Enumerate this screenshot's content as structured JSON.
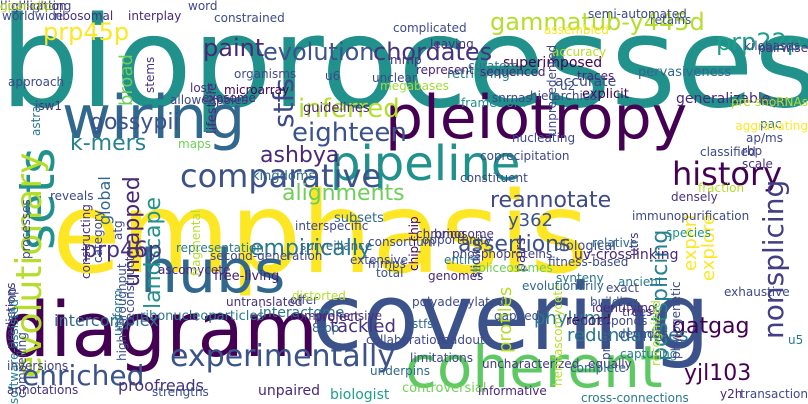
{
  "words": [
    {
      "text": "biopr​ocesses",
      "color": "#21918c"
    },
    {
      "text": "emphasis",
      "color": "#fde725"
    },
    {
      "text": "covering",
      "color": "#3b528b"
    },
    {
      "text": "diagram",
      "color": "#440154"
    },
    {
      "text": "pleiotropy",
      "color": "#440154"
    },
    {
      "text": "coherent",
      "color": "#5ec962"
    },
    {
      "text": "wiring",
      "color": "#31688e"
    },
    {
      "text": "pipeline",
      "color": "#21918c"
    },
    {
      "text": "hubs",
      "color": "#31688e"
    },
    {
      "text": "sets",
      "color": "#21918c"
    },
    {
      "text": "evolutionary",
      "color": "#b5de2b"
    },
    {
      "text": "experimentally",
      "color": "#3b528b"
    },
    {
      "text": "enriched",
      "color": "#3b528b"
    },
    {
      "text": "history",
      "color": "#440154"
    },
    {
      "text": "eighteen",
      "color": "#3b528b"
    },
    {
      "text": "comparative",
      "color": "#3b528b"
    },
    {
      "text": "inferred",
      "color": "#b5de2b"
    },
    {
      "text": "evolution",
      "color": "#3b528b"
    },
    {
      "text": "prp22p",
      "color": "#1f9e89"
    },
    {
      "text": "prp45p",
      "color": "#fde725"
    },
    {
      "text": "gammatub-y445d",
      "color": "#b5de2b"
    },
    {
      "text": "chordates",
      "color": "#46327e"
    },
    {
      "text": "paint",
      "color": "#482878"
    },
    {
      "text": "gossypii",
      "color": "#3b528b"
    },
    {
      "text": "k-mers",
      "color": "#26828e"
    },
    {
      "text": "ashbya",
      "color": "#482878"
    },
    {
      "text": "reannotate",
      "color": "#3e4989"
    },
    {
      "text": "nonsplicing",
      "color": "#433e85"
    },
    {
      "text": "assertions",
      "color": "#3b528b"
    },
    {
      "text": "postsplicing",
      "color": "#26828e"
    },
    {
      "text": "alignments",
      "color": "#6ece58"
    },
    {
      "text": "empirically",
      "color": "#2a788e"
    },
    {
      "text": "landscape",
      "color": "#21918c"
    },
    {
      "text": "ungapped",
      "color": "#482878"
    },
    {
      "text": "prp46p",
      "color": "#46327e"
    },
    {
      "text": "y362",
      "color": "#3b528b"
    },
    {
      "text": "phylum",
      "color": "#2a788e"
    },
    {
      "text": "explore",
      "color": "#fde725"
    },
    {
      "text": "expert",
      "color": "#fde725"
    },
    {
      "text": "profiles",
      "color": "#b5de2b"
    },
    {
      "text": "global",
      "color": "#31688e"
    },
    {
      "text": "stfs",
      "color": "#3e4989"
    },
    {
      "text": "broad",
      "color": "#6ece58"
    },
    {
      "text": "tackled",
      "color": "#46327e"
    },
    {
      "text": "yjl103",
      "color": "#440154"
    },
    {
      "text": "gatgag",
      "color": "#440154"
    },
    {
      "text": "redundancies",
      "color": "#2a788e"
    },
    {
      "text": "record",
      "color": "#440154"
    },
    {
      "text": "proofreads",
      "color": "#46327e"
    },
    {
      "text": "biologist",
      "color": "#1f9e89"
    },
    {
      "text": "unpaired",
      "color": "#482878"
    },
    {
      "text": "intercomplex",
      "color": "#31688e"
    },
    {
      "text": "ribonucleoparticles",
      "color": "#2a788e"
    },
    {
      "text": "free-living",
      "color": "#481f70"
    },
    {
      "text": "ascomycete",
      "color": "#482878"
    },
    {
      "text": "pairs",
      "color": "#46327e"
    },
    {
      "text": "word",
      "color": "#3e4989"
    },
    {
      "text": "lifestyle",
      "color": "#482878"
    },
    {
      "text": "superimposed",
      "color": "#440154"
    },
    {
      "text": "guidelines",
      "color": "#482878"
    },
    {
      "text": "framework",
      "color": "#21918c"
    },
    {
      "text": "retrieving",
      "color": "#26828e"
    },
    {
      "text": "accurate",
      "color": "#3e4989"
    },
    {
      "text": "explicit",
      "color": "#440154"
    },
    {
      "text": "generalizable",
      "color": "#482878"
    },
    {
      "text": "uv-crosslinking",
      "color": "#482878"
    },
    {
      "text": "biological",
      "color": "#3e4989"
    },
    {
      "text": "kingdoms",
      "color": "#31688e"
    },
    {
      "text": "subsets",
      "color": "#31688e"
    },
    {
      "text": "consortium",
      "color": "#3e4989"
    },
    {
      "text": "total",
      "color": "#3b528b"
    },
    {
      "text": "gapped",
      "color": "#3b528b"
    },
    {
      "text": "underpins",
      "color": "#31688e"
    },
    {
      "text": "uncharacterized",
      "color": "#443983"
    },
    {
      "text": "controversial",
      "color": "#73d056"
    },
    {
      "text": "informative",
      "color": "#482878"
    },
    {
      "text": "cross-connections",
      "color": "#2a788e"
    },
    {
      "text": "transaction",
      "color": "#3e4989"
    },
    {
      "text": "interactome",
      "color": "#2a788e"
    },
    {
      "text": "project",
      "color": "#481f70"
    },
    {
      "text": "8-bp",
      "color": "#31688e"
    },
    {
      "text": "pac",
      "color": "#2a788e"
    },
    {
      "text": "rbps",
      "color": "#3e4989"
    },
    {
      "text": "ap/ms",
      "color": "#3e4989"
    },
    {
      "text": "scale",
      "color": "#46327e"
    },
    {
      "text": "rbp",
      "color": "#433e85"
    },
    {
      "text": "densely",
      "color": "#46327e"
    },
    {
      "text": "pervasiveness",
      "color": "#31688e"
    },
    {
      "text": "traces",
      "color": "#482878"
    },
    {
      "text": "snrnas",
      "color": "#3e4989"
    },
    {
      "text": "megabases",
      "color": "#a0da39"
    },
    {
      "text": "represent",
      "color": "#481f70"
    },
    {
      "text": "curators",
      "color": "#2a788e"
    },
    {
      "text": "assembled",
      "color": "#fde725"
    },
    {
      "text": "semi-automated",
      "color": "#3e4989"
    },
    {
      "text": "interplay",
      "color": "#482878"
    },
    {
      "text": "microarray",
      "color": "#440154"
    },
    {
      "text": "organisms",
      "color": "#3e4989"
    },
    {
      "text": "stems",
      "color": "#46327e"
    },
    {
      "text": "snrnp",
      "color": "#3e4989"
    },
    {
      "text": "predictions",
      "color": "#46327e"
    },
    {
      "text": "software-assisted",
      "color": "#26828e"
    },
    {
      "text": "compelling",
      "color": "#3e4989"
    },
    {
      "text": "inversions",
      "color": "#433e85"
    },
    {
      "text": "annotations",
      "color": "#46327e"
    },
    {
      "text": "strengths",
      "color": "#3b528b"
    },
    {
      "text": "high-throughput",
      "color": "#3b528b"
    },
    {
      "text": "representation",
      "color": "#2a788e"
    },
    {
      "text": "second-generation",
      "color": "#3e4989"
    },
    {
      "text": "reconstruct",
      "color": "#3e4989"
    },
    {
      "text": "polyadenylated",
      "color": "#3e4989"
    },
    {
      "text": "spliceosomes",
      "color": "#6ece58"
    },
    {
      "text": "phosphoproteins",
      "color": "#433e85"
    },
    {
      "text": "chip-chip",
      "color": "#440154"
    },
    {
      "text": "genomes",
      "color": "#482878"
    },
    {
      "text": "trees",
      "color": "#443983"
    },
    {
      "text": "hemiascomycete",
      "color": "#b5de2b"
    },
    {
      "text": "identifying",
      "color": "#482878"
    },
    {
      "text": "ancient",
      "color": "#2a788e"
    },
    {
      "text": "utrs",
      "color": "#46327e"
    },
    {
      "text": "species",
      "color": "#21918c"
    },
    {
      "text": "relative",
      "color": "#31688e"
    },
    {
      "text": "fitness-based",
      "color": "#3e4989"
    },
    {
      "text": "synteny",
      "color": "#2a788e"
    },
    {
      "text": "exact",
      "color": "#3e4989"
    },
    {
      "text": "exhaustive",
      "color": "#3e4989"
    },
    {
      "text": "building",
      "color": "#3b528b"
    },
    {
      "text": "corresponds",
      "color": "#3e4989"
    },
    {
      "text": "u5",
      "color": "#2a788e"
    },
    {
      "text": "y2h",
      "color": "#482878"
    },
    {
      "text": "equally",
      "color": "#46327e"
    },
    {
      "text": "capturing",
      "color": "#2a788e"
    },
    {
      "text": "complete",
      "color": "#31688e"
    },
    {
      "text": "decades",
      "color": "#3e4989"
    },
    {
      "text": "worldwide",
      "color": "#3e4989"
    },
    {
      "text": "ribosomal",
      "color": "#46327e"
    },
    {
      "text": "kilobases",
      "color": "#3e4989"
    },
    {
      "text": "pre-snoRNAs",
      "color": "#b5de2b"
    },
    {
      "text": "pairwise",
      "color": "#46327e"
    },
    {
      "text": "retains",
      "color": "#3b528b"
    },
    {
      "text": "constrained",
      "color": "#3e4989"
    },
    {
      "text": "complicated",
      "color": "#3e4989"
    },
    {
      "text": "leaving",
      "color": "#46327e"
    },
    {
      "text": "sequenced",
      "color": "#482878"
    },
    {
      "text": "exosome",
      "color": "#482878"
    },
    {
      "text": "u6",
      "color": "#3e4989"
    },
    {
      "text": "unclear",
      "color": "#3e4989"
    },
    {
      "text": "mrnp",
      "color": "#46327e"
    },
    {
      "text": "poles",
      "color": "#46327e"
    },
    {
      "text": "allowed",
      "color": "#3e4989"
    },
    {
      "text": "lost",
      "color": "#46327e"
    },
    {
      "text": "maps",
      "color": "#6ece58"
    },
    {
      "text": "approach",
      "color": "#3e4989"
    },
    {
      "text": "isw1",
      "color": "#46327e"
    },
    {
      "text": "astral",
      "color": "#2a788e"
    },
    {
      "text": "offer",
      "color": "#3e4989"
    },
    {
      "text": "interspecific",
      "color": "#3e4989"
    },
    {
      "text": "surveillance",
      "color": "#31688e"
    },
    {
      "text": "extensive",
      "color": "#3e4989"
    },
    {
      "text": "mrnps",
      "color": "#3e4989"
    },
    {
      "text": "entire",
      "color": "#2a788e"
    },
    {
      "text": "chromosome",
      "color": "#46327e"
    },
    {
      "text": "bring",
      "color": "#46327e"
    },
    {
      "text": "nucleating",
      "color": "#3e4989"
    },
    {
      "text": "constituent",
      "color": "#3e4989"
    },
    {
      "text": "fraction",
      "color": "#b5de2b"
    },
    {
      "text": "classified",
      "color": "#3e4989"
    },
    {
      "text": "opportunity",
      "color": "#3e4989"
    },
    {
      "text": "sliding",
      "color": "#3e4989"
    },
    {
      "text": "distorted",
      "color": "#b5de2b"
    },
    {
      "text": "stfs",
      "color": "#31688e"
    },
    {
      "text": "readout",
      "color": "#3e4989"
    },
    {
      "text": "collaboration",
      "color": "#3e4989"
    },
    {
      "text": "limitations",
      "color": "#3e4989"
    },
    {
      "text": "comprehensive",
      "color": "#46327e"
    },
    {
      "text": "untranslated",
      "color": "#46327e"
    },
    {
      "text": "reveals",
      "color": "#3e4989"
    },
    {
      "text": "constructing",
      "color": "#46327e"
    },
    {
      "text": "processes",
      "color": "#3e4989"
    },
    {
      "text": "atg",
      "color": "#3e4989"
    },
    {
      "text": "uniform",
      "color": "#2a788e"
    },
    {
      "text": "category",
      "color": "#3e4989"
    },
    {
      "text": "fragmental",
      "color": "#b5de2b"
    },
    {
      "text": "accuracy",
      "color": "#b5de2b"
    },
    {
      "text": "unprecedented",
      "color": "#3e4989"
    },
    {
      "text": "u2",
      "color": "#3e4989"
    },
    {
      "text": "hierarchical",
      "color": "#3e4989"
    },
    {
      "text": "immunopurification",
      "color": "#3e4989"
    },
    {
      "text": "aggravating",
      "color": "#fde725"
    },
    {
      "text": "proved",
      "color": "#3e4989"
    },
    {
      "text": "recognized",
      "color": "#b5de2b"
    },
    {
      "text": "phylogenetic",
      "color": "#3e4989"
    },
    {
      "text": "coprecipitation",
      "color": "#3e4989"
    },
    {
      "text": "evolutionarily",
      "color": "#31688e"
    },
    {
      "text": "highlighting",
      "color": "#3e4989"
    },
    {
      "text": "duplication",
      "color": "#46327e"
    },
    {
      "text": "gpar-clip",
      "color": "#b5de2b"
    }
  ]
}
